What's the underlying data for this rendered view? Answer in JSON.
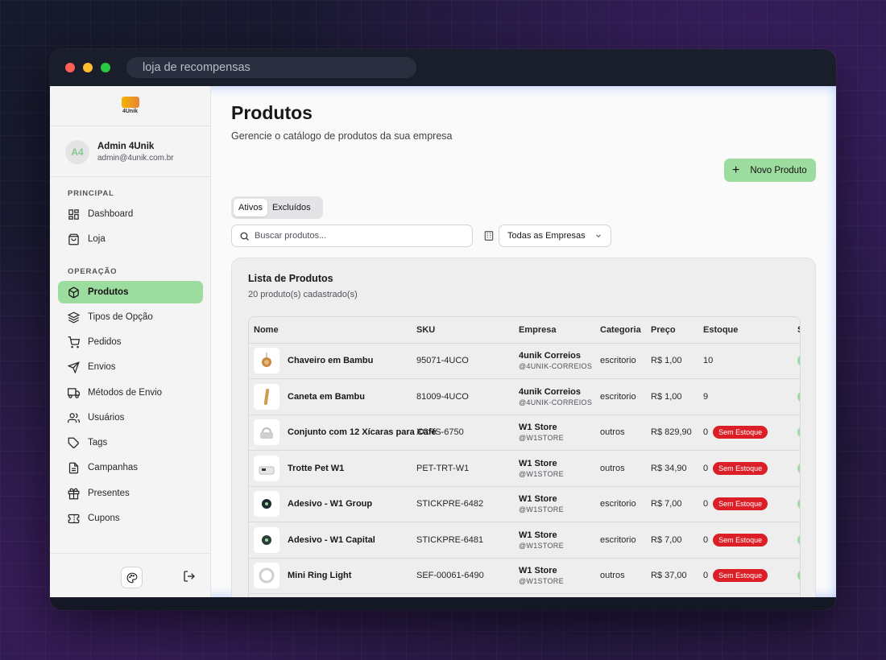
{
  "window": {
    "url": "loja de recompensas"
  },
  "sidebar": {
    "logo_text": "4Unik",
    "user": {
      "initials": "A4",
      "name": "Admin 4Unik",
      "email": "admin@4unik.com.br"
    },
    "section_principal": "PRINCIPAL",
    "section_operacao": "OPERAÇÃO",
    "items": [
      {
        "label": "Dashboard",
        "icon": "dashboard-icon"
      },
      {
        "label": "Loja",
        "icon": "shopping-bag-icon"
      },
      {
        "label": "Produtos",
        "icon": "box-icon",
        "active": true
      },
      {
        "label": "Tipos de Opção",
        "icon": "layers-icon"
      },
      {
        "label": "Pedidos",
        "icon": "cart-icon"
      },
      {
        "label": "Envios",
        "icon": "send-icon"
      },
      {
        "label": "Métodos de Envio",
        "icon": "truck-icon"
      },
      {
        "label": "Usuários",
        "icon": "users-icon"
      },
      {
        "label": "Tags",
        "icon": "tag-icon"
      },
      {
        "label": "Campanhas",
        "icon": "file-icon"
      },
      {
        "label": "Presentes",
        "icon": "gift-icon"
      },
      {
        "label": "Cupons",
        "icon": "ticket-icon"
      }
    ]
  },
  "header": {
    "title": "Produtos",
    "subtitle": "Gerencie o catálogo de produtos da sua empresa",
    "new_button": "Novo Produto"
  },
  "filters": {
    "tabs": [
      "Ativos",
      "Excluídos"
    ],
    "active_tab": "Ativos",
    "search_placeholder": "Buscar produtos...",
    "company_select": "Todas as Empresas"
  },
  "list": {
    "title": "Lista de Produtos",
    "count_text": "20 produto(s) cadastrado(s)",
    "columns": [
      "Nome",
      "SKU",
      "Empresa",
      "Categoria",
      "Preço",
      "Estoque",
      "S"
    ],
    "rows": [
      {
        "name": "Chaveiro em Bambu",
        "sku": "95071-4UCO",
        "company": "4unik Correios",
        "handle": "@4UNIK-CORREIOS",
        "category": "escritorio",
        "price": "R$ 1,00",
        "stock": "10",
        "badge": ""
      },
      {
        "name": "Caneta em Bambu",
        "sku": "81009-4UCO",
        "company": "4unik Correios",
        "handle": "@4UNIK-CORREIOS",
        "category": "escritorio",
        "price": "R$ 1,00",
        "stock": "9",
        "badge": ""
      },
      {
        "name": "Conjunto com 12 Xícaras para Café",
        "sku": "XCRS-6750",
        "company": "W1 Store",
        "handle": "@W1STORE",
        "category": "outros",
        "price": "R$ 829,90",
        "stock": "0",
        "badge": "Sem Estoque"
      },
      {
        "name": "Trotte Pet W1",
        "sku": "PET-TRT-W1",
        "company": "W1 Store",
        "handle": "@W1STORE",
        "category": "outros",
        "price": "R$ 34,90",
        "stock": "0",
        "badge": "Sem Estoque"
      },
      {
        "name": "Adesivo - W1 Group",
        "sku": "STICKPRE-6482",
        "company": "W1 Store",
        "handle": "@W1STORE",
        "category": "escritorio",
        "price": "R$ 7,00",
        "stock": "0",
        "badge": "Sem Estoque"
      },
      {
        "name": "Adesivo - W1 Capital",
        "sku": "STICKPRE-6481",
        "company": "W1 Store",
        "handle": "@W1STORE",
        "category": "escritorio",
        "price": "R$ 7,00",
        "stock": "0",
        "badge": "Sem Estoque"
      },
      {
        "name": "Mini Ring Light",
        "sku": "SEF-00061-6490",
        "company": "W1 Store",
        "handle": "@W1STORE",
        "category": "outros",
        "price": "R$ 37,00",
        "stock": "0",
        "badge": "Sem Estoque"
      }
    ]
  },
  "colors": {
    "accent": "#9ddc9f",
    "danger": "#dc1f26"
  }
}
